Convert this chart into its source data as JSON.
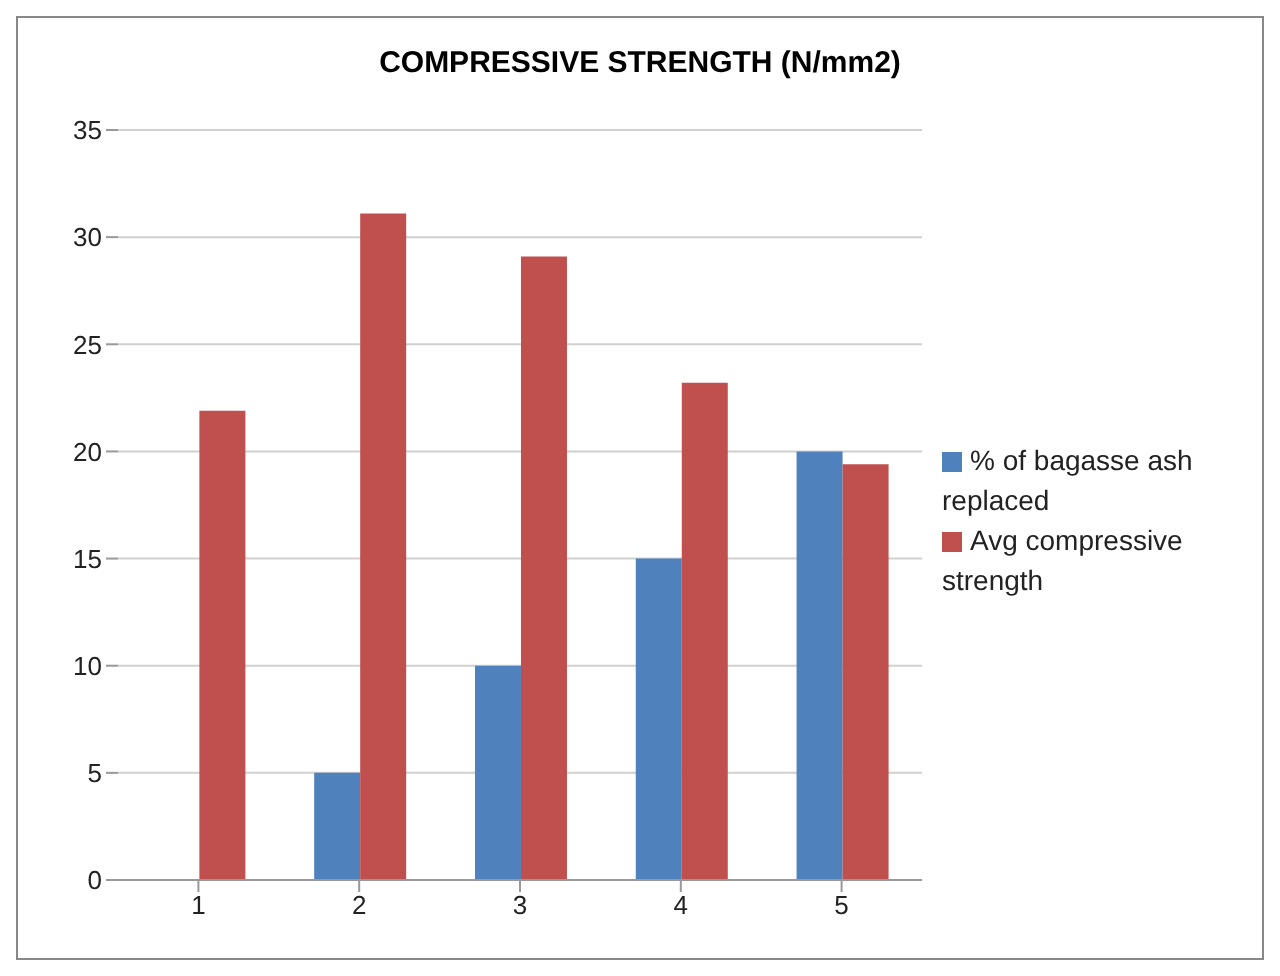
{
  "chart_data": {
    "type": "bar",
    "title": "COMPRESSIVE STRENGTH (N/mm2)",
    "categories": [
      "1",
      "2",
      "3",
      "4",
      "5"
    ],
    "series": [
      {
        "name": "% of bagasse ash replaced",
        "color": "#4f81bd",
        "values": [
          0,
          5,
          10,
          15,
          20
        ]
      },
      {
        "name": "Avg compressive strength",
        "color": "#c0504d",
        "values": [
          21.9,
          31.1,
          29.1,
          23.2,
          19.4
        ]
      }
    ],
    "ylim": [
      0,
      35
    ],
    "yticks": [
      0,
      5,
      10,
      15,
      20,
      25,
      30,
      35
    ],
    "grid": "y",
    "legend": "right"
  }
}
